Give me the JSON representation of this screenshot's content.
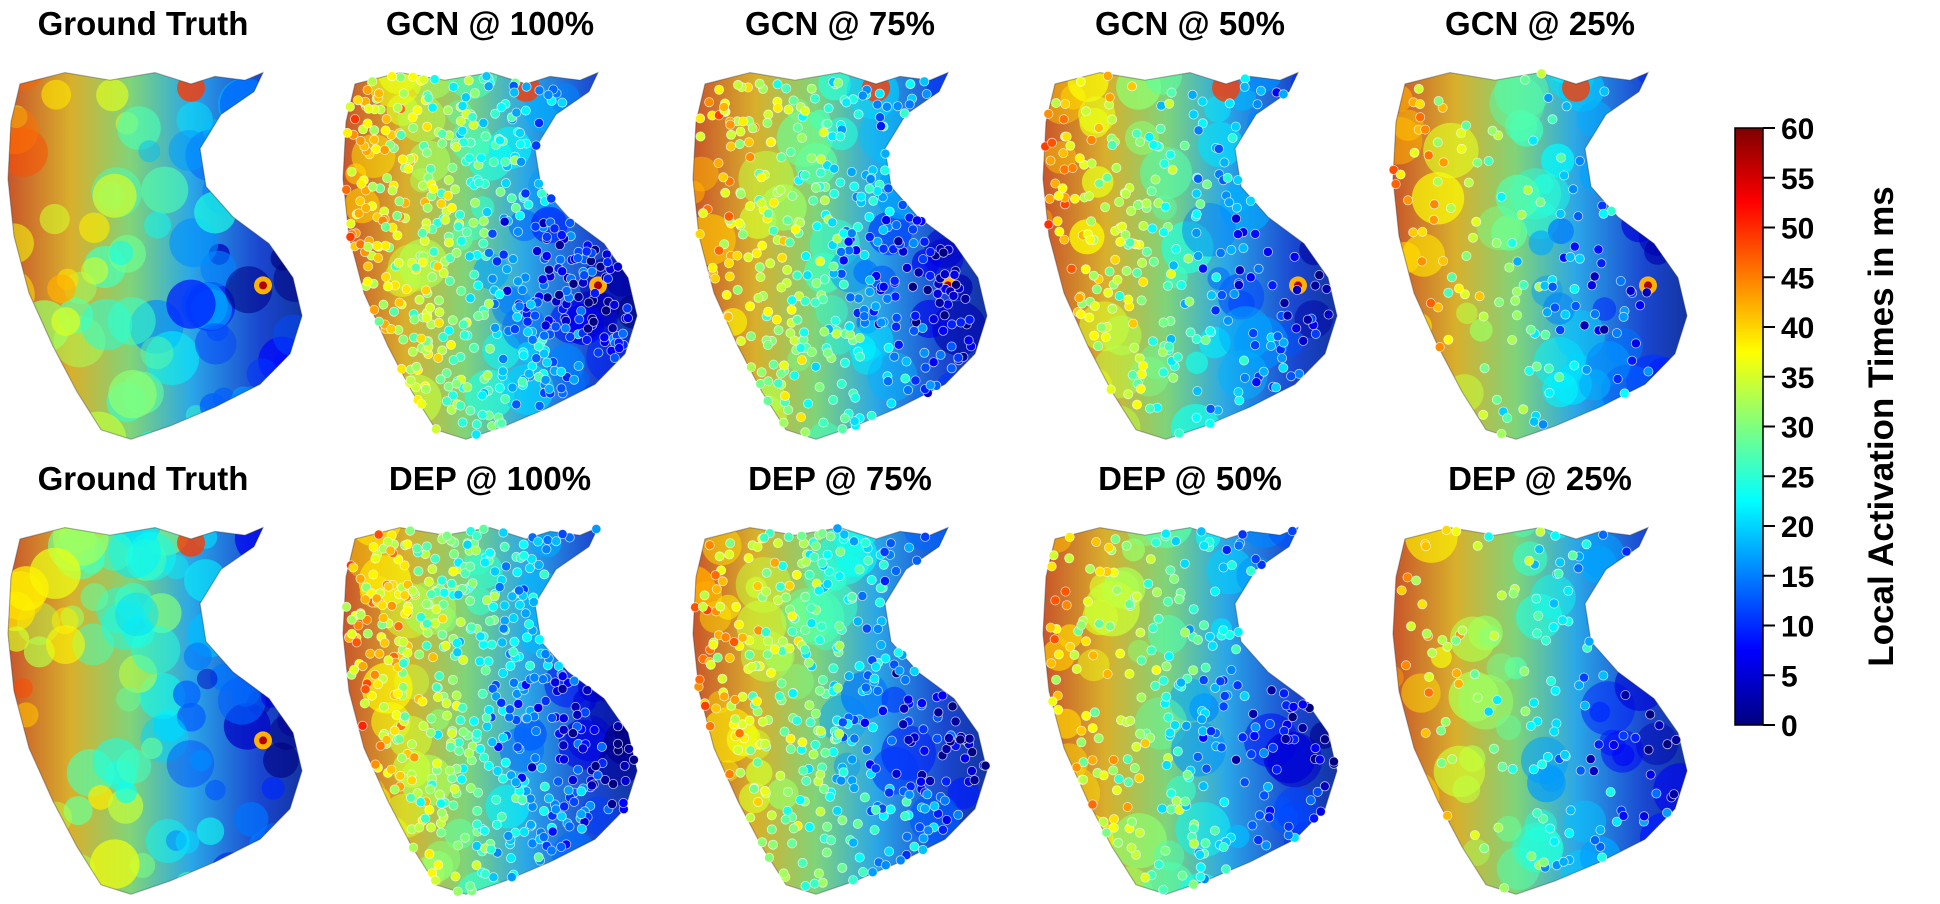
{
  "panels": [
    {
      "row": 0,
      "col": 0,
      "title": "Ground Truth",
      "kind": "gt",
      "density": 0
    },
    {
      "row": 0,
      "col": 1,
      "title": "GCN @ 100%",
      "kind": "gcn",
      "density": 1.0
    },
    {
      "row": 0,
      "col": 2,
      "title": "GCN @ 75%",
      "kind": "gcn",
      "density": 0.75
    },
    {
      "row": 0,
      "col": 3,
      "title": "GCN @ 50%",
      "kind": "gcn",
      "density": 0.5
    },
    {
      "row": 0,
      "col": 4,
      "title": "GCN @ 25%",
      "kind": "gcn",
      "density": 0.25
    },
    {
      "row": 1,
      "col": 0,
      "title": "Ground Truth",
      "kind": "gt",
      "density": 0
    },
    {
      "row": 1,
      "col": 1,
      "title": "DEP @ 100%",
      "kind": "dep",
      "density": 1.0
    },
    {
      "row": 1,
      "col": 2,
      "title": "DEP @ 75%",
      "kind": "dep",
      "density": 0.75
    },
    {
      "row": 1,
      "col": 3,
      "title": "DEP @ 50%",
      "kind": "dep",
      "density": 0.5
    },
    {
      "row": 1,
      "col": 4,
      "title": "DEP @ 25%",
      "kind": "dep",
      "density": 0.25
    }
  ],
  "colorbar": {
    "title": "Local Activation Times in ms",
    "ticks": [
      "60",
      "55",
      "50",
      "45",
      "40",
      "35",
      "30",
      "25",
      "20",
      "15",
      "10",
      "5",
      "0"
    ],
    "min": 0,
    "max": 60,
    "colormap": "jet",
    "colors": [
      "#00007f",
      "#0000ff",
      "#007fff",
      "#00ffff",
      "#7fff7f",
      "#ffff00",
      "#ff7f00",
      "#ff0000",
      "#7f0000"
    ]
  }
}
